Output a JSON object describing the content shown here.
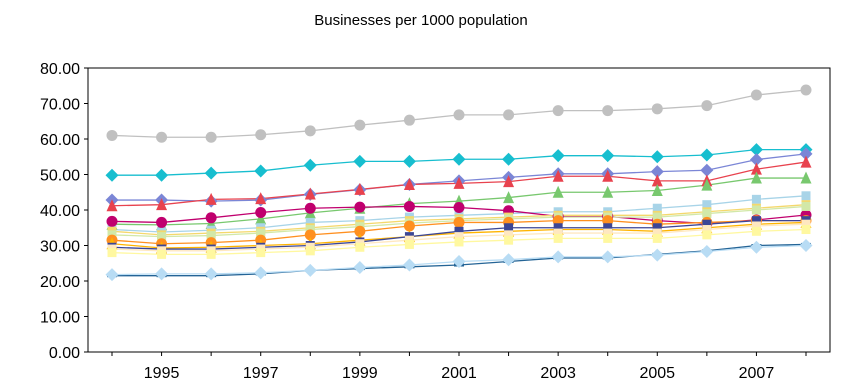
{
  "chart_data": {
    "type": "line",
    "title": "Businesses per 1000 population",
    "xlabel": "",
    "ylabel": "",
    "ylim": [
      0,
      80
    ],
    "yticks": [
      "0.00",
      "10.00",
      "20.00",
      "30.00",
      "40.00",
      "50.00",
      "60.00",
      "70.00",
      "80.00"
    ],
    "xtick_labels": [
      "1995",
      "1997",
      "1999",
      "2001",
      "2003",
      "2005",
      "2007"
    ],
    "x": [
      1994,
      1995,
      1996,
      1997,
      1998,
      1999,
      2000,
      2001,
      2002,
      2003,
      2004,
      2005,
      2006,
      2007,
      2008
    ],
    "grid": false,
    "legend": "none",
    "series": [
      {
        "color": "#c0c0c0",
        "marker": "circle",
        "values": [
          61.0,
          60.5,
          60.5,
          61.2,
          62.3,
          63.9,
          65.3,
          66.8,
          66.8,
          68.0,
          68.0,
          68.5,
          69.4,
          72.4,
          73.8
        ]
      },
      {
        "color": "#17becf",
        "marker": "diamond",
        "values": [
          49.8,
          49.8,
          50.4,
          51.0,
          52.6,
          53.7,
          53.7,
          54.3,
          54.3,
          55.3,
          55.3,
          55.0,
          55.5,
          57.0,
          57.0
        ]
      },
      {
        "color": "#7b86d6",
        "marker": "diamond",
        "values": [
          42.8,
          42.8,
          42.5,
          42.8,
          44.4,
          45.7,
          47.2,
          48.2,
          49.2,
          50.2,
          50.2,
          50.8,
          51.2,
          54.2,
          55.8
        ]
      },
      {
        "color": "#e8424e",
        "marker": "triangle",
        "values": [
          41.2,
          41.5,
          43.0,
          43.2,
          44.5,
          45.8,
          47.2,
          47.5,
          48.0,
          49.5,
          49.5,
          48.2,
          48.2,
          51.5,
          53.5
        ]
      },
      {
        "color": "#78c86e",
        "marker": "triangle",
        "values": [
          36.0,
          35.8,
          36.2,
          37.5,
          39.2,
          40.5,
          41.8,
          42.5,
          43.5,
          45.0,
          45.0,
          45.5,
          47.0,
          49.0,
          49.0
        ]
      },
      {
        "color": "#a8d4e8",
        "marker": "square",
        "values": [
          34.5,
          33.8,
          34.3,
          35.0,
          36.5,
          37.0,
          38.0,
          38.5,
          39.0,
          39.5,
          39.5,
          40.5,
          41.5,
          43.0,
          44.0
        ]
      },
      {
        "color": "#c0006e",
        "marker": "circle",
        "values": [
          36.8,
          36.5,
          37.8,
          39.3,
          40.5,
          40.8,
          41.0,
          40.7,
          39.8,
          38.2,
          38.2,
          37.0,
          36.2,
          37.2,
          38.6
        ]
      },
      {
        "color": "#f4d86c",
        "marker": "square",
        "values": [
          34.0,
          33.0,
          33.5,
          34.0,
          35.0,
          36.0,
          37.0,
          37.5,
          38.0,
          38.5,
          38.5,
          38.5,
          39.5,
          40.5,
          41.5
        ]
      },
      {
        "color": "#d2e8a8",
        "marker": "square",
        "values": [
          33.0,
          32.5,
          32.8,
          33.5,
          34.5,
          35.3,
          36.3,
          37.0,
          37.5,
          38.0,
          38.0,
          38.0,
          39.0,
          40.0,
          41.0
        ]
      },
      {
        "color": "#ff9020",
        "marker": "circle",
        "values": [
          31.5,
          30.5,
          30.8,
          31.5,
          33.0,
          34.0,
          35.5,
          36.5,
          36.5,
          37.0,
          37.0,
          36.0,
          36.5,
          37.0,
          37.0
        ]
      },
      {
        "color": "#ffb400",
        "marker": "triangle",
        "values": [
          30.5,
          29.3,
          29.5,
          30.0,
          30.5,
          31.5,
          32.5,
          33.5,
          34.0,
          34.5,
          34.5,
          34.0,
          35.0,
          36.0,
          36.5
        ]
      },
      {
        "color": "#3c4696",
        "marker": "square",
        "values": [
          29.5,
          29.0,
          29.0,
          29.5,
          30.0,
          31.0,
          32.5,
          34.0,
          35.0,
          35.0,
          35.0,
          35.0,
          36.0,
          37.0,
          37.0
        ]
      },
      {
        "color": "#ffe8c0",
        "marker": "square",
        "values": [
          29.0,
          28.5,
          28.5,
          29.0,
          29.5,
          30.5,
          31.5,
          32.5,
          33.0,
          33.5,
          33.5,
          33.5,
          34.5,
          35.5,
          36.0
        ]
      },
      {
        "color": "#fff8a0",
        "marker": "square",
        "values": [
          28.0,
          27.5,
          27.5,
          28.0,
          28.5,
          29.5,
          30.3,
          31.0,
          31.5,
          32.0,
          32.0,
          32.0,
          33.0,
          34.0,
          34.5
        ]
      },
      {
        "color": "#246496",
        "marker": "dash",
        "values": [
          21.5,
          21.5,
          21.5,
          22.0,
          23.0,
          23.5,
          24.0,
          24.5,
          25.5,
          26.5,
          26.5,
          27.5,
          28.5,
          30.0,
          30.3
        ]
      },
      {
        "color": "#b8dcf4",
        "marker": "diamond",
        "values": [
          21.8,
          22.0,
          22.0,
          22.3,
          23.0,
          23.8,
          24.5,
          25.5,
          26.0,
          26.8,
          26.8,
          27.3,
          28.3,
          29.5,
          30.0
        ]
      }
    ]
  }
}
